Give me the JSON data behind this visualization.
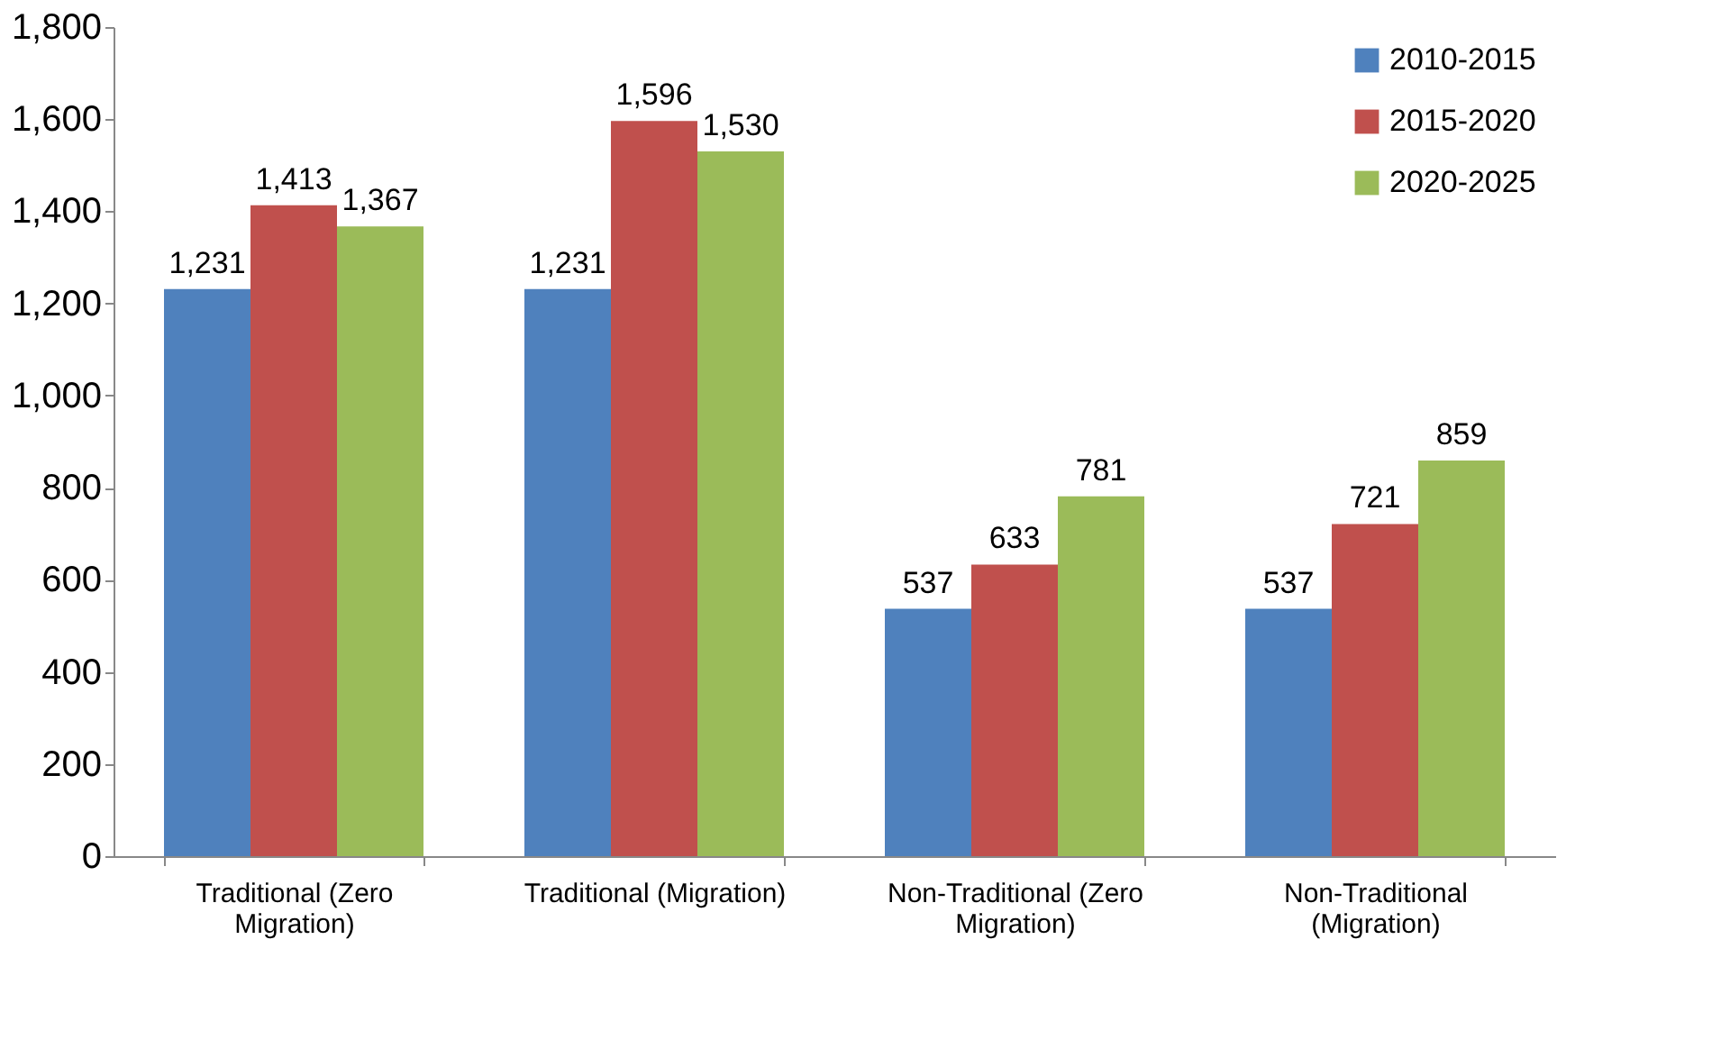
{
  "chart_data": {
    "type": "bar",
    "categories": [
      "Traditional (Zero Migration)",
      "Traditional (Migration)",
      "Non-Traditional (Zero Migration)",
      "Non-Traditional (Migration)"
    ],
    "series": [
      {
        "name": "2010-2015",
        "color": "#4f81bd",
        "values": [
          1231,
          1231,
          537,
          537
        ],
        "value_labels": [
          "1,231",
          "1,231",
          "537",
          "537"
        ]
      },
      {
        "name": "2015-2020",
        "color": "#c0504d",
        "values": [
          1413,
          1596,
          633,
          721
        ],
        "value_labels": [
          "1,413",
          "1,596",
          "633",
          "721"
        ]
      },
      {
        "name": "2020-2025",
        "color": "#9bbb59",
        "values": [
          1367,
          1530,
          781,
          859
        ],
        "value_labels": [
          "1,367",
          "1,530",
          "781",
          "859"
        ]
      }
    ],
    "ylim": [
      0,
      1800
    ],
    "yticks": [
      0,
      200,
      400,
      600,
      800,
      {
        "value": 1000,
        "label": "1,000"
      },
      {
        "value": 1200,
        "label": "1,200"
      },
      {
        "value": 1400,
        "label": "1,400"
      },
      {
        "value": 1600,
        "label": "1,600"
      },
      {
        "value": 1800,
        "label": "1,800"
      }
    ],
    "grid": false,
    "legend": "top right"
  }
}
